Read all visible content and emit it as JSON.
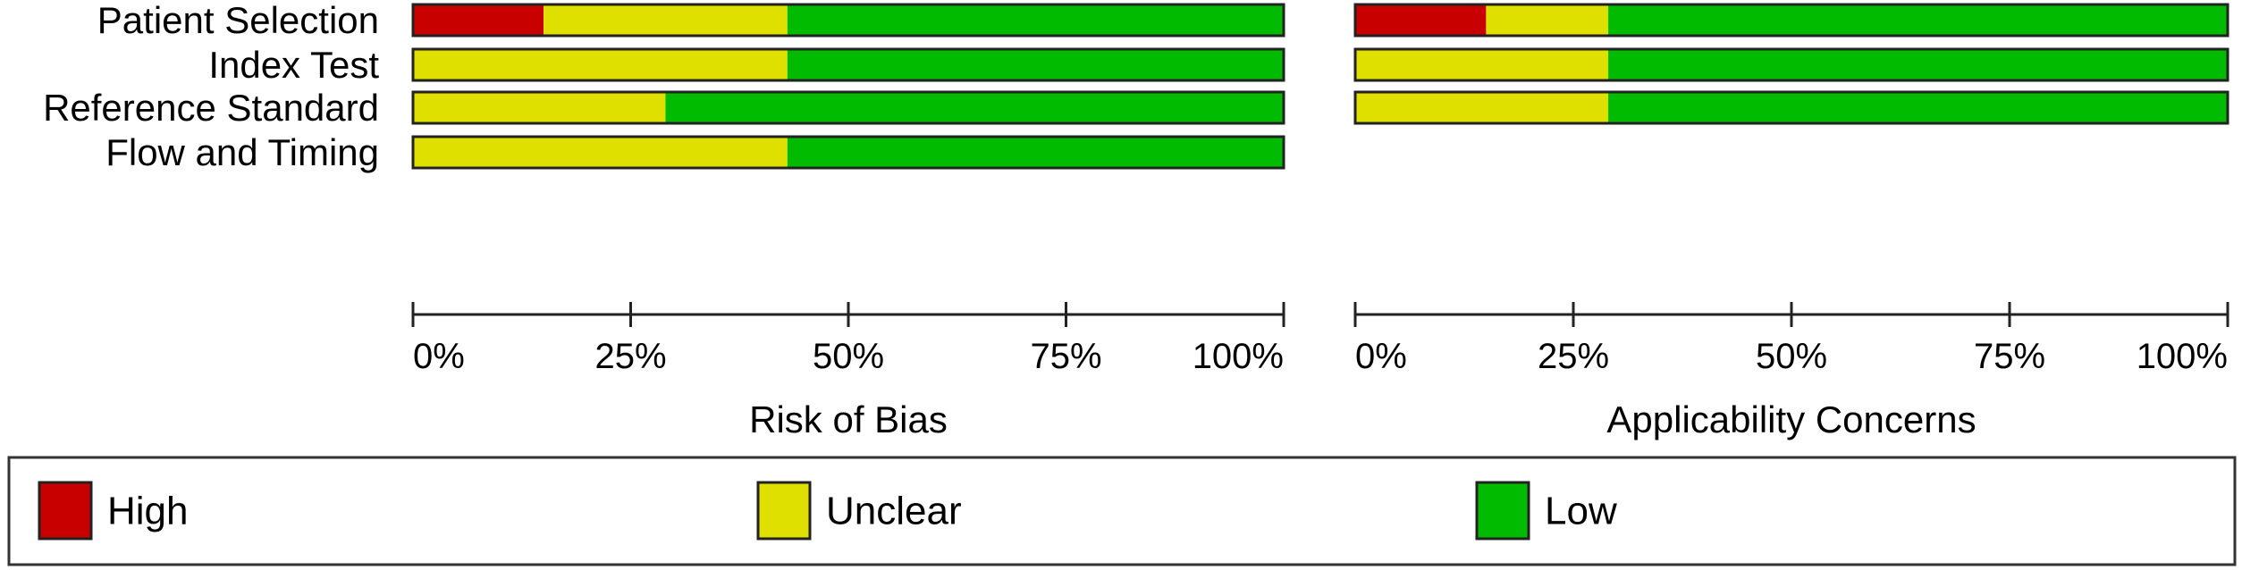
{
  "colors": {
    "high": "#c80000",
    "unclear": "#dfe000",
    "low": "#00bb00",
    "border": "#222222"
  },
  "chart_data": [
    {
      "type": "bar",
      "orientation": "horizontal",
      "stacked": true,
      "title": "",
      "xlabel": "Risk of Bias",
      "xlim": [
        0,
        100
      ],
      "xticks": [
        "0%",
        "25%",
        "50%",
        "75%",
        "100%"
      ],
      "categories": [
        "Patient Selection",
        "Index Test",
        "Reference Standard",
        "Flow and Timing"
      ],
      "series": [
        {
          "name": "High",
          "values": [
            15,
            0,
            0,
            0
          ]
        },
        {
          "name": "Unclear",
          "values": [
            28,
            43,
            29,
            43
          ]
        },
        {
          "name": "Low",
          "values": [
            57,
            57,
            71,
            57
          ]
        }
      ]
    },
    {
      "type": "bar",
      "orientation": "horizontal",
      "stacked": true,
      "title": "",
      "xlabel": "Applicability Concerns",
      "xlim": [
        0,
        100
      ],
      "xticks": [
        "0%",
        "25%",
        "50%",
        "75%",
        "100%"
      ],
      "categories": [
        "Patient Selection",
        "Index Test",
        "Reference Standard"
      ],
      "series": [
        {
          "name": "High",
          "values": [
            15,
            0,
            0
          ]
        },
        {
          "name": "Unclear",
          "values": [
            14,
            29,
            29
          ]
        },
        {
          "name": "Low",
          "values": [
            71,
            71,
            71
          ]
        }
      ]
    }
  ],
  "legend": {
    "items": [
      "High",
      "Unclear",
      "Low"
    ]
  }
}
